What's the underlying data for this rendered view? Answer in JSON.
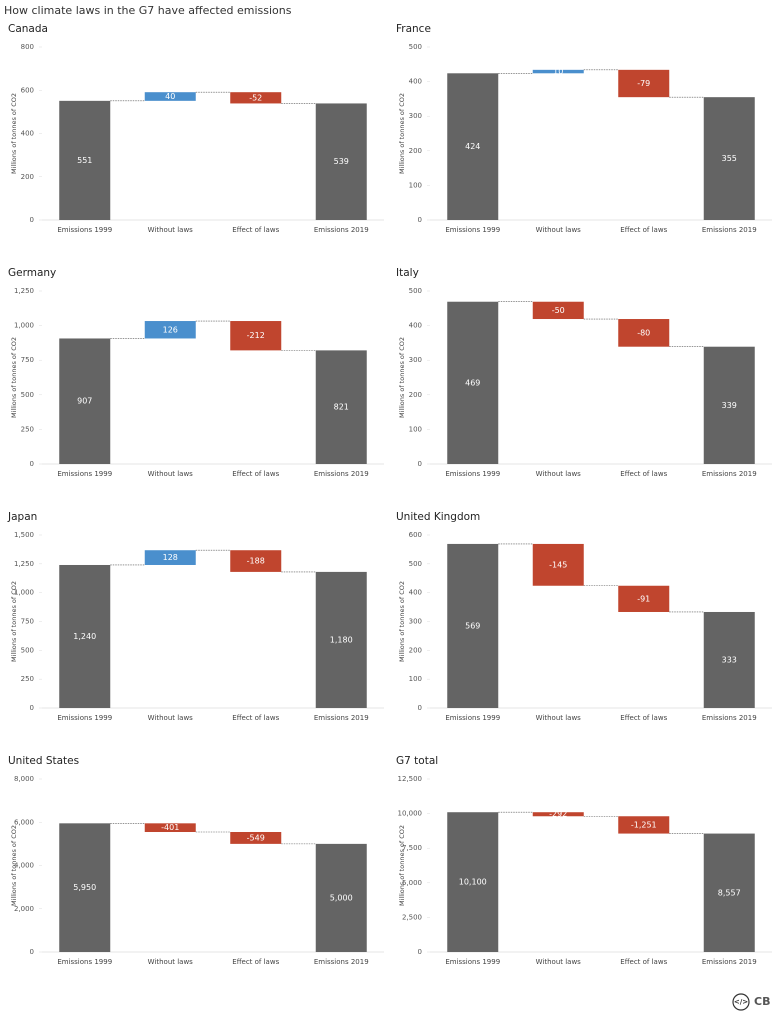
{
  "title": "How climate laws in the G7 have affected emissions",
  "logo": "CB",
  "chart_data": [
    {
      "type": "waterfall",
      "title": "Canada",
      "y_label": "Millions of tonnes of CO2",
      "categories": [
        "Emissions 1999",
        "Without laws",
        "Effect of laws",
        "Emissions 2019"
      ],
      "values": [
        551,
        40,
        -52,
        539
      ],
      "totals": [
        true,
        false,
        false,
        true
      ],
      "colors": {
        "total": "#646464",
        "increase": "#4a8fcd",
        "decrease": "#c0452e"
      },
      "ylim": [
        0,
        800
      ],
      "yticks": [
        0,
        200,
        400,
        600,
        800
      ]
    },
    {
      "type": "waterfall",
      "title": "France",
      "y_label": "Millions of tonnes of CO2",
      "categories": [
        "Emissions 1999",
        "Without laws",
        "Effect of laws",
        "Emissions 2019"
      ],
      "values": [
        424,
        10,
        -79,
        355
      ],
      "totals": [
        true,
        false,
        false,
        true
      ],
      "colors": {
        "total": "#646464",
        "increase": "#4a8fcd",
        "decrease": "#c0452e"
      },
      "ylim": [
        0,
        500
      ],
      "yticks": [
        0,
        100,
        200,
        300,
        400,
        500
      ]
    },
    {
      "type": "waterfall",
      "title": "Germany",
      "y_label": "Millions of tonnes of CO2",
      "categories": [
        "Emissions 1999",
        "Without laws",
        "Effect of laws",
        "Emissions 2019"
      ],
      "values": [
        907,
        126,
        -212,
        821
      ],
      "totals": [
        true,
        false,
        false,
        true
      ],
      "colors": {
        "total": "#646464",
        "increase": "#4a8fcd",
        "decrease": "#c0452e"
      },
      "ylim": [
        0,
        1250
      ],
      "yticks": [
        0,
        250,
        500,
        750,
        {
          "value": 1000,
          "label": "1,000"
        },
        {
          "value": 1250,
          "label": "1,250"
        }
      ]
    },
    {
      "type": "waterfall",
      "title": "Italy",
      "y_label": "Millions of tonnes of CO2",
      "categories": [
        "Emissions 1999",
        "Without laws",
        "Effect of laws",
        "Emissions 2019"
      ],
      "values": [
        469,
        -50,
        -80,
        339
      ],
      "totals": [
        true,
        false,
        false,
        true
      ],
      "colors": {
        "total": "#646464",
        "increase": "#4a8fcd",
        "decrease": "#c0452e"
      },
      "ylim": [
        0,
        500
      ],
      "yticks": [
        0,
        100,
        200,
        300,
        400,
        500
      ]
    },
    {
      "type": "waterfall",
      "title": "Japan",
      "y_label": "Millions of tonnes of CO2",
      "categories": [
        "Emissions 1999",
        "Without laws",
        "Effect of laws",
        "Emissions 2019"
      ],
      "values": [
        1240,
        128,
        -188,
        1180
      ],
      "value_labels": [
        "1,240",
        "128",
        "-188",
        "1,180"
      ],
      "totals": [
        true,
        false,
        false,
        true
      ],
      "colors": {
        "total": "#646464",
        "increase": "#4a8fcd",
        "decrease": "#c0452e"
      },
      "ylim": [
        0,
        1500
      ],
      "yticks": [
        0,
        250,
        500,
        750,
        {
          "value": 1000,
          "label": "1,000"
        },
        {
          "value": 1250,
          "label": "1,250"
        },
        {
          "value": 1500,
          "label": "1,500"
        }
      ]
    },
    {
      "type": "waterfall",
      "title": "United Kingdom",
      "y_label": "Millions of tonnes of CO2",
      "categories": [
        "Emissions 1999",
        "Without laws",
        "Effect of laws",
        "Emissions 2019"
      ],
      "values": [
        569,
        -145,
        -91,
        333
      ],
      "totals": [
        true,
        false,
        false,
        true
      ],
      "colors": {
        "total": "#646464",
        "increase": "#4a8fcd",
        "decrease": "#c0452e"
      },
      "ylim": [
        0,
        600
      ],
      "yticks": [
        0,
        100,
        200,
        300,
        400,
        500,
        600
      ]
    },
    {
      "type": "waterfall",
      "title": "United States",
      "y_label": "Millions of tonnes of CO2",
      "categories": [
        "Emissions 1999",
        "Without laws",
        "Effect of laws",
        "Emissions 2019"
      ],
      "values": [
        5950,
        -401,
        -549,
        5000
      ],
      "value_labels": [
        "5,950",
        "-401",
        "-549",
        "5,000"
      ],
      "totals": [
        true,
        false,
        false,
        true
      ],
      "colors": {
        "total": "#646464",
        "increase": "#4a8fcd",
        "decrease": "#c0452e"
      },
      "ylim": [
        0,
        8000
      ],
      "yticks": [
        0,
        {
          "value": 2000,
          "label": "2,000"
        },
        {
          "value": 4000,
          "label": "4,000"
        },
        {
          "value": 6000,
          "label": "6,000"
        },
        {
          "value": 8000,
          "label": "8,000"
        }
      ]
    },
    {
      "type": "waterfall",
      "title": "G7 total",
      "y_label": "Millions of tonnes of CO2",
      "categories": [
        "Emissions 1999",
        "Without laws",
        "Effect of laws",
        "Emissions 2019"
      ],
      "values": [
        10100,
        -292,
        -1251,
        8557
      ],
      "value_labels": [
        "10,100",
        "-292",
        "-1,251",
        "8,557"
      ],
      "totals": [
        true,
        false,
        false,
        true
      ],
      "colors": {
        "total": "#646464",
        "increase": "#4a8fcd",
        "decrease": "#c0452e"
      },
      "ylim": [
        0,
        12500
      ],
      "yticks": [
        0,
        {
          "value": 2500,
          "label": "2,500"
        },
        {
          "value": 5000,
          "label": "5,000"
        },
        {
          "value": 7500,
          "label": "7,500"
        },
        {
          "value": 10000,
          "label": "10,000"
        },
        {
          "value": 12500,
          "label": "12,500"
        }
      ]
    }
  ]
}
